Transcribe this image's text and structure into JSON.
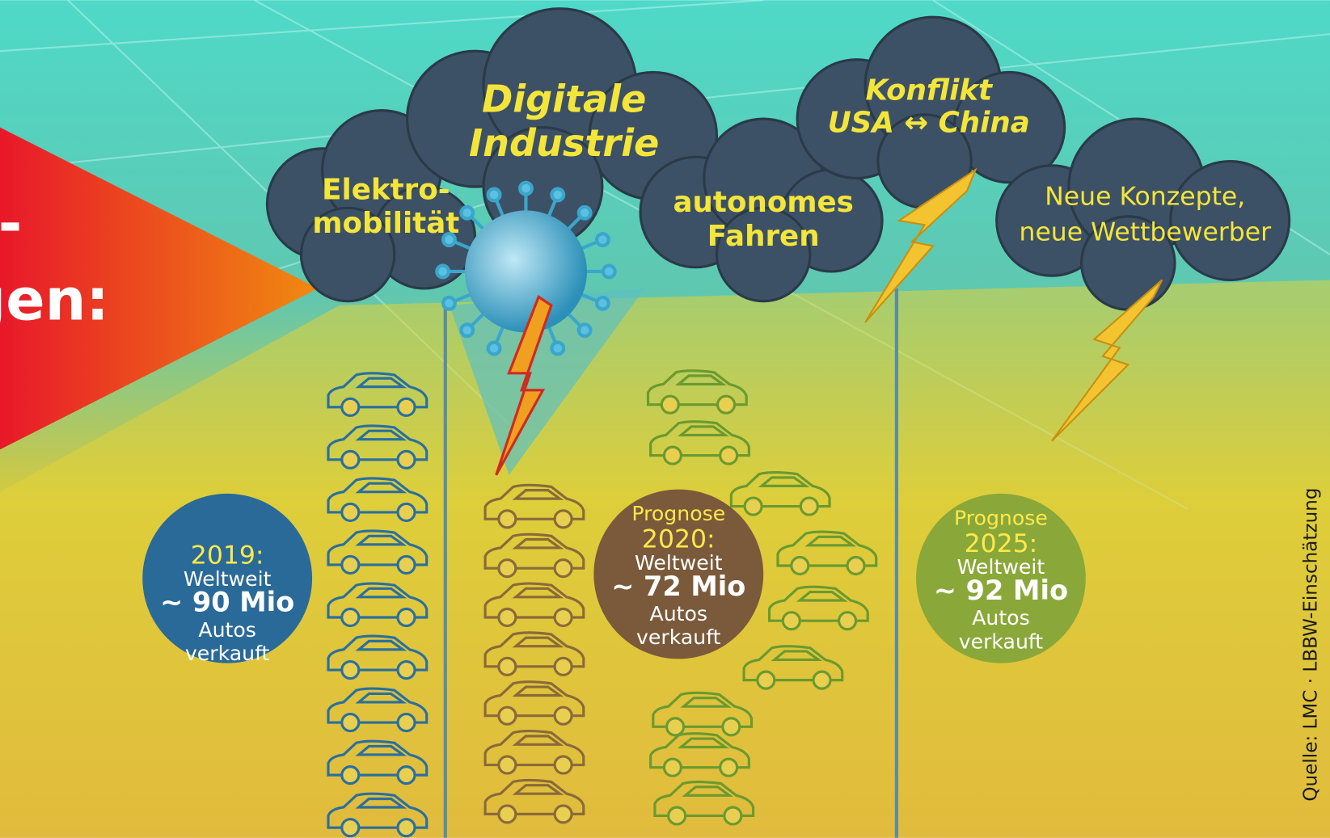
{
  "title_fragment": [
    "-",
    "ungen:"
  ],
  "clouds": [
    {
      "lines": [
        "Elektro-",
        "mobilität"
      ]
    },
    {
      "lines": [
        "Digitale",
        "Industrie"
      ]
    },
    {
      "lines": [
        "autonomes",
        "Fahren"
      ]
    },
    {
      "lines": [
        "Konflikt",
        "USA ↔ China"
      ]
    },
    {
      "lines": [
        "Neue Konzepte,",
        "neue Wettbewerber"
      ]
    }
  ],
  "forecasts": [
    {
      "year": "2019:",
      "lines": [
        "Weltweit",
        "~ 90 Mio",
        "Autos",
        "verkauft"
      ]
    },
    {
      "prefix": "Prognose",
      "year": "2020:",
      "lines": [
        "Weltweit",
        "~ 72 Mio",
        "Autos",
        "verkauft"
      ]
    },
    {
      "prefix": "Prognose",
      "year": "2025:",
      "lines": [
        "Weltweit",
        "~ 92 Mio",
        "Autos",
        "verkauft"
      ]
    }
  ],
  "source": "Quelle: LMC · LBBW-Einschätzung"
}
